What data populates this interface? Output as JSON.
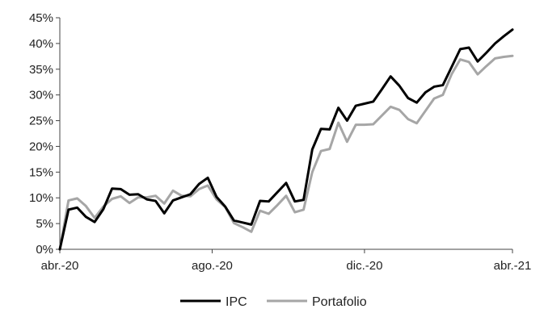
{
  "chart_data": {
    "type": "line",
    "title": "",
    "xlabel": "",
    "ylabel": "",
    "ylim": [
      0,
      45
    ],
    "yticks": [
      "0%",
      "5%",
      "10%",
      "15%",
      "20%",
      "25%",
      "30%",
      "35%",
      "40%",
      "45%"
    ],
    "xticks": [
      "abr.-20",
      "ago.-20",
      "dic.-20",
      "abr.-21"
    ],
    "grid": false,
    "legend": "bottom-center",
    "series": [
      {
        "name": "IPC",
        "color": "#000000",
        "values": [
          0,
          7.7,
          8.1,
          6.3,
          5.3,
          7.8,
          11.8,
          11.7,
          10.6,
          10.7,
          9.7,
          9.4,
          7.0,
          9.5,
          10.1,
          10.7,
          12.7,
          13.9,
          10.2,
          8.3,
          5.6,
          5.2,
          4.8,
          9.4,
          9.3,
          11.1,
          12.9,
          9.3,
          9.6,
          19.4,
          23.4,
          23.3,
          27.5,
          25.0,
          27.9,
          28.3,
          28.7,
          31.1,
          33.6,
          31.8,
          29.4,
          28.5,
          30.5,
          31.6,
          31.9,
          35.4,
          38.9,
          39.2,
          36.5,
          38.2,
          40.0,
          41.4,
          42.7
        ]
      },
      {
        "name": "Portafolio",
        "color": "#a6a6a6",
        "values": [
          0,
          9.5,
          9.9,
          8.4,
          6.1,
          8.3,
          9.8,
          10.3,
          9.0,
          10.1,
          10.1,
          10.4,
          8.9,
          11.4,
          10.4,
          10.3,
          11.7,
          12.4,
          9.7,
          8.2,
          5.1,
          4.3,
          3.4,
          7.5,
          6.9,
          8.6,
          10.4,
          7.2,
          7.7,
          15.0,
          19.1,
          19.5,
          24.6,
          20.9,
          24.2,
          24.2,
          24.3,
          26.0,
          27.7,
          27.1,
          25.3,
          24.5,
          26.9,
          29.3,
          30.0,
          34.0,
          36.9,
          36.4,
          34.0,
          35.6,
          37.1,
          37.4,
          37.6
        ]
      }
    ]
  }
}
